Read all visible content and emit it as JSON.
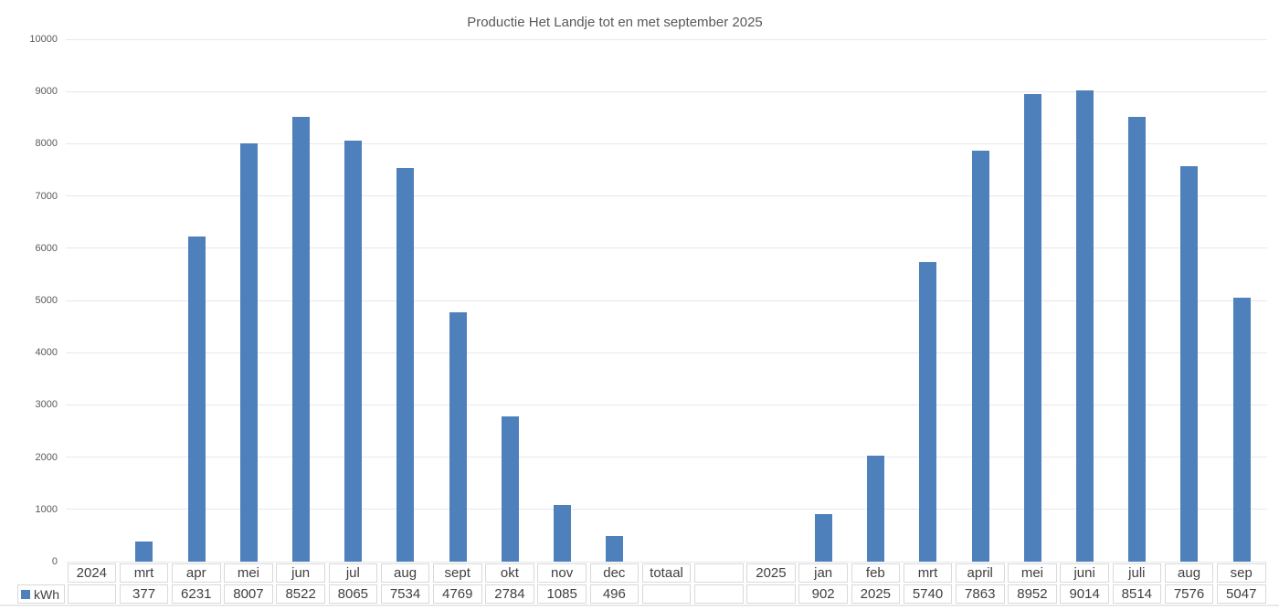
{
  "chart_data": {
    "type": "bar",
    "title": "Productie Het Landje tot en met september 2025",
    "legend": "kWh",
    "legend_position": "bottom-left",
    "grid": true,
    "xlabel": "",
    "ylabel": "",
    "ylim": [
      0,
      10000
    ],
    "ytick_step": 1000,
    "ytick_labels": [
      "0",
      "1000",
      "2000",
      "3000",
      "4000",
      "5000",
      "6000",
      "7000",
      "8000",
      "9000",
      "10000"
    ],
    "categories": [
      "2024",
      "mrt",
      "apr",
      "mei",
      "jun",
      "jul",
      "aug",
      "sept",
      "okt",
      "nov",
      "dec",
      "totaal",
      "",
      "2025",
      "jan",
      "feb",
      "mrt",
      "april",
      "mei",
      "juni",
      "juli",
      "aug",
      "sep"
    ],
    "series": [
      {
        "name": "kWh",
        "values": [
          null,
          377,
          6231,
          8007,
          8522,
          8065,
          7534,
          4769,
          2784,
          1085,
          496,
          null,
          null,
          null,
          902,
          2025,
          5740,
          7863,
          8952,
          9014,
          8514,
          7576,
          5047
        ]
      }
    ],
    "data_table_shown": true,
    "colors": {
      "bar": "#4e80bc",
      "title_text": "#595959",
      "axis_text": "#595959",
      "table_text": "#404040",
      "gridline": "#e6e8ec",
      "cell_border": "#d9d9d9",
      "divider": "#e7e9ec",
      "background": "#ffffff"
    }
  }
}
